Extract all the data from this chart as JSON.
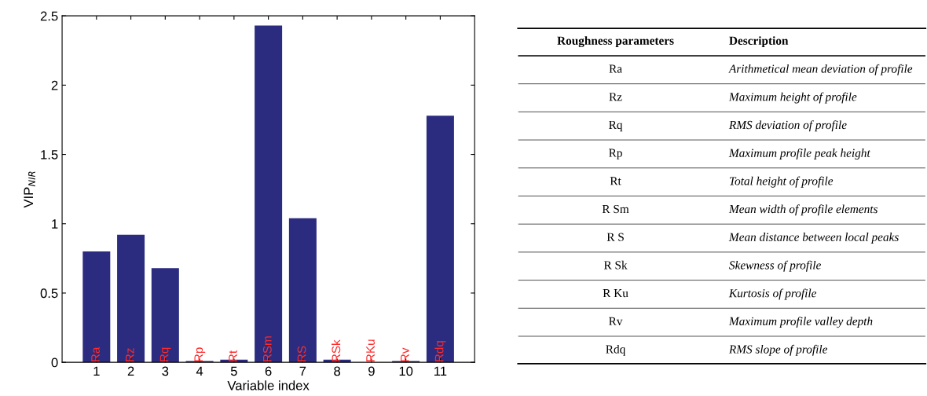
{
  "chart_data": [
    {
      "type": "bar",
      "xlabel": "Variable index",
      "ylabel": "VIP$_{NIR}$",
      "categories": [
        "1",
        "2",
        "3",
        "4",
        "5",
        "6",
        "7",
        "8",
        "9",
        "10",
        "11"
      ],
      "values": [
        0.8,
        0.92,
        0.68,
        0.01,
        0.02,
        2.43,
        1.04,
        0.02,
        0,
        0.01,
        1.78
      ],
      "color": "#2b2c7f",
      "ylim": [
        0,
        2.5
      ],
      "yticks": [
        0,
        {
          "value": 0.5,
          "label": "0.5"
        },
        1,
        {
          "value": 1.5,
          "label": "1.5"
        },
        2,
        {
          "value": 2.5,
          "label": "2.5"
        }
      ],
      "grid": false,
      "annotations": [
        {
          "text": "Ra",
          "x": "1",
          "y": 0
        },
        {
          "text": "Rz",
          "x": "2",
          "y": 0
        },
        {
          "text": "Rq",
          "x": "3",
          "y": 0
        },
        {
          "text": "Rp",
          "x": "4",
          "y": 0
        },
        {
          "text": "Rt",
          "x": "5",
          "y": 0
        },
        {
          "text": "RSm",
          "x": "6",
          "y": 0
        },
        {
          "text": "RS",
          "x": "7",
          "y": 0
        },
        {
          "text": "RSk",
          "x": "8",
          "y": 0
        },
        {
          "text": "RKu",
          "x": "9",
          "y": 0
        },
        {
          "text": "Rv",
          "x": "10",
          "y": 0
        },
        {
          "text": "Rdq",
          "x": "11",
          "y": 0
        }
      ]
    },
    {
      "type": "other",
      "annotations": [
        "Roughness parameters",
        "Description",
        "Ra",
        "Arithmetical mean deviation of profile",
        "Rz",
        "Maximum height of profile",
        "Rq",
        "RMS deviation of profile",
        "Rp",
        "Maximum profile peak height",
        "Rt",
        "Total height of profile",
        "R Sm",
        "Mean width of profile elements",
        "R S",
        "Mean distance between local peaks",
        "R Sk",
        "Skewness of profile",
        "R Ku",
        "Kurtosis of profile",
        "Rv",
        "Maximum profile valley depth",
        "Rdq",
        "RMS slope of profile"
      ]
    }
  ]
}
